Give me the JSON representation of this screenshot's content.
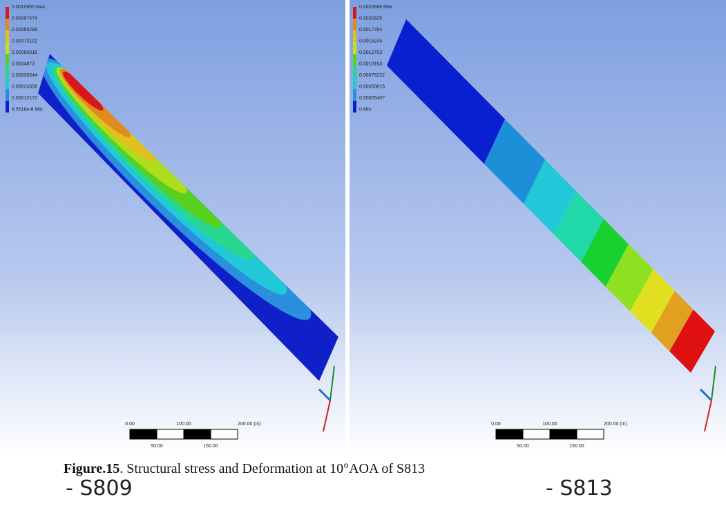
{
  "figure": {
    "panels": [
      {
        "legend": [
          "0.0010955 Max",
          "0.00097474",
          "0.00085288",
          "0.00073102",
          "0.00060916",
          "0.0004873",
          "0.00036544",
          "0.00024358",
          "0.00012172",
          "8.5516e-8 Min"
        ],
        "scale": {
          "top": [
            "0.00",
            "100.00",
            "200.00 (m)"
          ],
          "bottom": [
            "50.00",
            "150.00"
          ]
        },
        "label": "- S809"
      },
      {
        "legend": [
          "0.0022866 Max",
          "0.0020325",
          "0.0017784",
          "0.0015244",
          "0.0012703",
          "0.0010163",
          "0.00076222",
          "0.00050815",
          "0.00025407",
          "0 Min"
        ],
        "scale": {
          "top": [
            "0.00",
            "100.00",
            "200.00 (m)"
          ],
          "bottom": [
            "50.00",
            "150.00"
          ]
        },
        "label": "- S813"
      }
    ],
    "caption": {
      "number": "Figure.15",
      "text": ". Structural stress and Deformation at 10°AOA of S813"
    }
  }
}
